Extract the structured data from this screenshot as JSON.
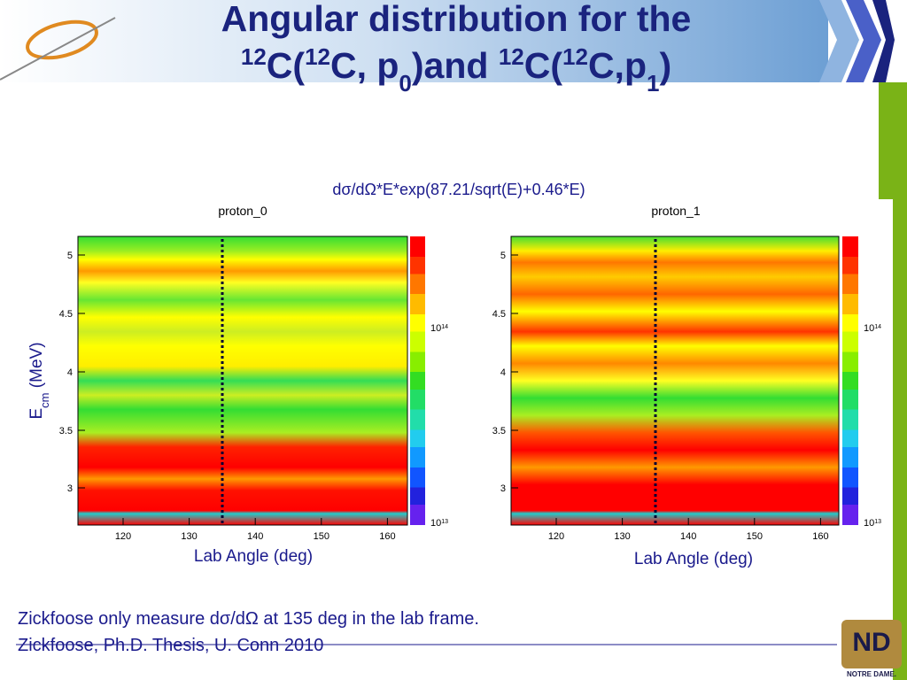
{
  "title": {
    "line1": "Angular distribution for the",
    "line2": [
      {
        "text": "12",
        "script": "sup"
      },
      {
        "text": "C(",
        "script": "normal"
      },
      {
        "text": "12",
        "script": "sup"
      },
      {
        "text": "C, p",
        "script": "normal"
      },
      {
        "text": "0",
        "script": "sub"
      },
      {
        "text": ")and ",
        "script": "normal"
      },
      {
        "text": "12",
        "script": "sup"
      },
      {
        "text": "C(",
        "script": "normal"
      },
      {
        "text": "12",
        "script": "sup"
      },
      {
        "text": "C,p",
        "script": "normal"
      },
      {
        "text": "1",
        "script": "sub"
      },
      {
        "text": ")",
        "script": "normal"
      }
    ]
  },
  "formula": "dσ/dΩ*E*exp(87.21/sqrt(E)+0.46*E)",
  "y_label": {
    "main": "E",
    "sub": "cm",
    "rest": " (MeV)"
  },
  "panels": [
    {
      "title": "proton_0",
      "x_label": "Lab Angle (deg)",
      "yticks": [
        "5",
        "4.5",
        "4",
        "3.5",
        "3"
      ],
      "xticks": [
        "120",
        "130",
        "140",
        "150",
        "160"
      ],
      "colorbar": [
        {
          "base": "10",
          "exp": "14"
        },
        {
          "base": "10",
          "exp": "13"
        }
      ]
    },
    {
      "title": "proton_1",
      "x_label": "Lab Angle (deg)",
      "yticks": [
        "5",
        "4.5",
        "4",
        "3.5",
        "3"
      ],
      "xticks": [
        "120",
        "130",
        "140",
        "150",
        "160"
      ],
      "colorbar": [
        {
          "base": "10",
          "exp": "14"
        },
        {
          "base": "10",
          "exp": "13"
        }
      ]
    }
  ],
  "footer": [
    "Zickfoose only measure dσ/dΩ at 135 deg in the lab frame.",
    "Zickfoose, Ph.D. Thesis, U. Conn 2010"
  ],
  "logo": "NOTRE DAME."
}
